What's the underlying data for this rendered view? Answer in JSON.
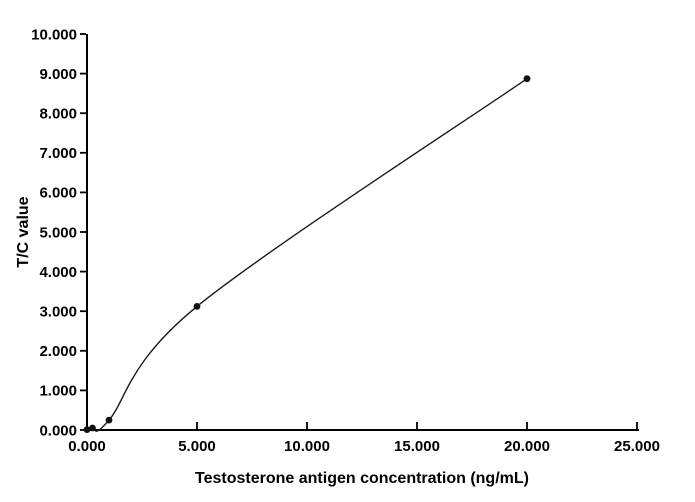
{
  "chart_data": {
    "type": "line",
    "curve": "smooth",
    "x": [
      0,
      0.25,
      1,
      5,
      20
    ],
    "y": [
      0.01,
      0.05,
      0.25,
      3.12,
      8.87
    ],
    "xlabel": "Testosterone antigen concentration (ng/mL)",
    "ylabel": "T/C value",
    "xlim": [
      0,
      25
    ],
    "ylim": [
      0,
      10
    ],
    "x_tick_values": [
      0,
      5,
      10,
      15,
      20,
      25
    ],
    "x_tick_labels": [
      "0.000",
      "5.000",
      "10.000",
      "15.000",
      "20.000",
      "25.000"
    ],
    "y_tick_values": [
      0,
      1,
      2,
      3,
      4,
      5,
      6,
      7,
      8,
      9,
      10
    ],
    "y_tick_labels": [
      "0.000",
      "1.000",
      "2.000",
      "3.000",
      "4.000",
      "5.000",
      "6.000",
      "7.000",
      "8.000",
      "9.000",
      "10.000"
    ],
    "grid": false,
    "legend": false,
    "marker": "circle",
    "line_color": "#1a1a1a",
    "marker_color": "#111111",
    "axis_color": "#000000",
    "text_color": "#000000",
    "background": "#ffffff"
  }
}
